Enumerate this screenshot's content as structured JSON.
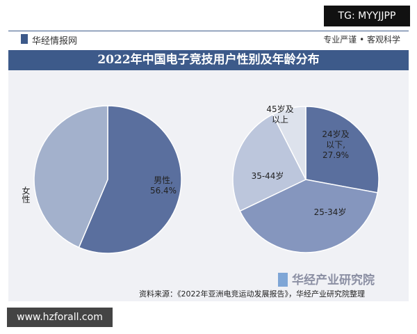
{
  "tag": "TG: MYYJJPP",
  "header": {
    "brand": "华经情报网",
    "slogan": "专业严谨 • 客观科学"
  },
  "title": "2022年中国电子竞技用户性别及年龄分布",
  "chart_data": [
    {
      "type": "pie",
      "categories": [
        "男性,",
        "女性"
      ],
      "values": [
        56.4,
        43.6
      ],
      "value_labels": [
        "56.4%",
        null
      ],
      "colors": [
        "#5a6f9e",
        "#a3b1cc"
      ]
    },
    {
      "type": "pie",
      "categories": [
        "24岁及以下,",
        "25-34岁",
        "35-44岁",
        "45岁及以上"
      ],
      "values": [
        27.9,
        40.0,
        24.6,
        7.5
      ],
      "value_labels": [
        "27.9%",
        null,
        null,
        null
      ],
      "colors": [
        "#5a6f9e",
        "#8596be",
        "#bcc6dc",
        "#dde2ec"
      ]
    }
  ],
  "logo": "华经产业研究院",
  "source": "资料来源：《2022年亚洲电竞运动发展报告》，华经产业研究院整理",
  "site": "www.hzforall.com"
}
